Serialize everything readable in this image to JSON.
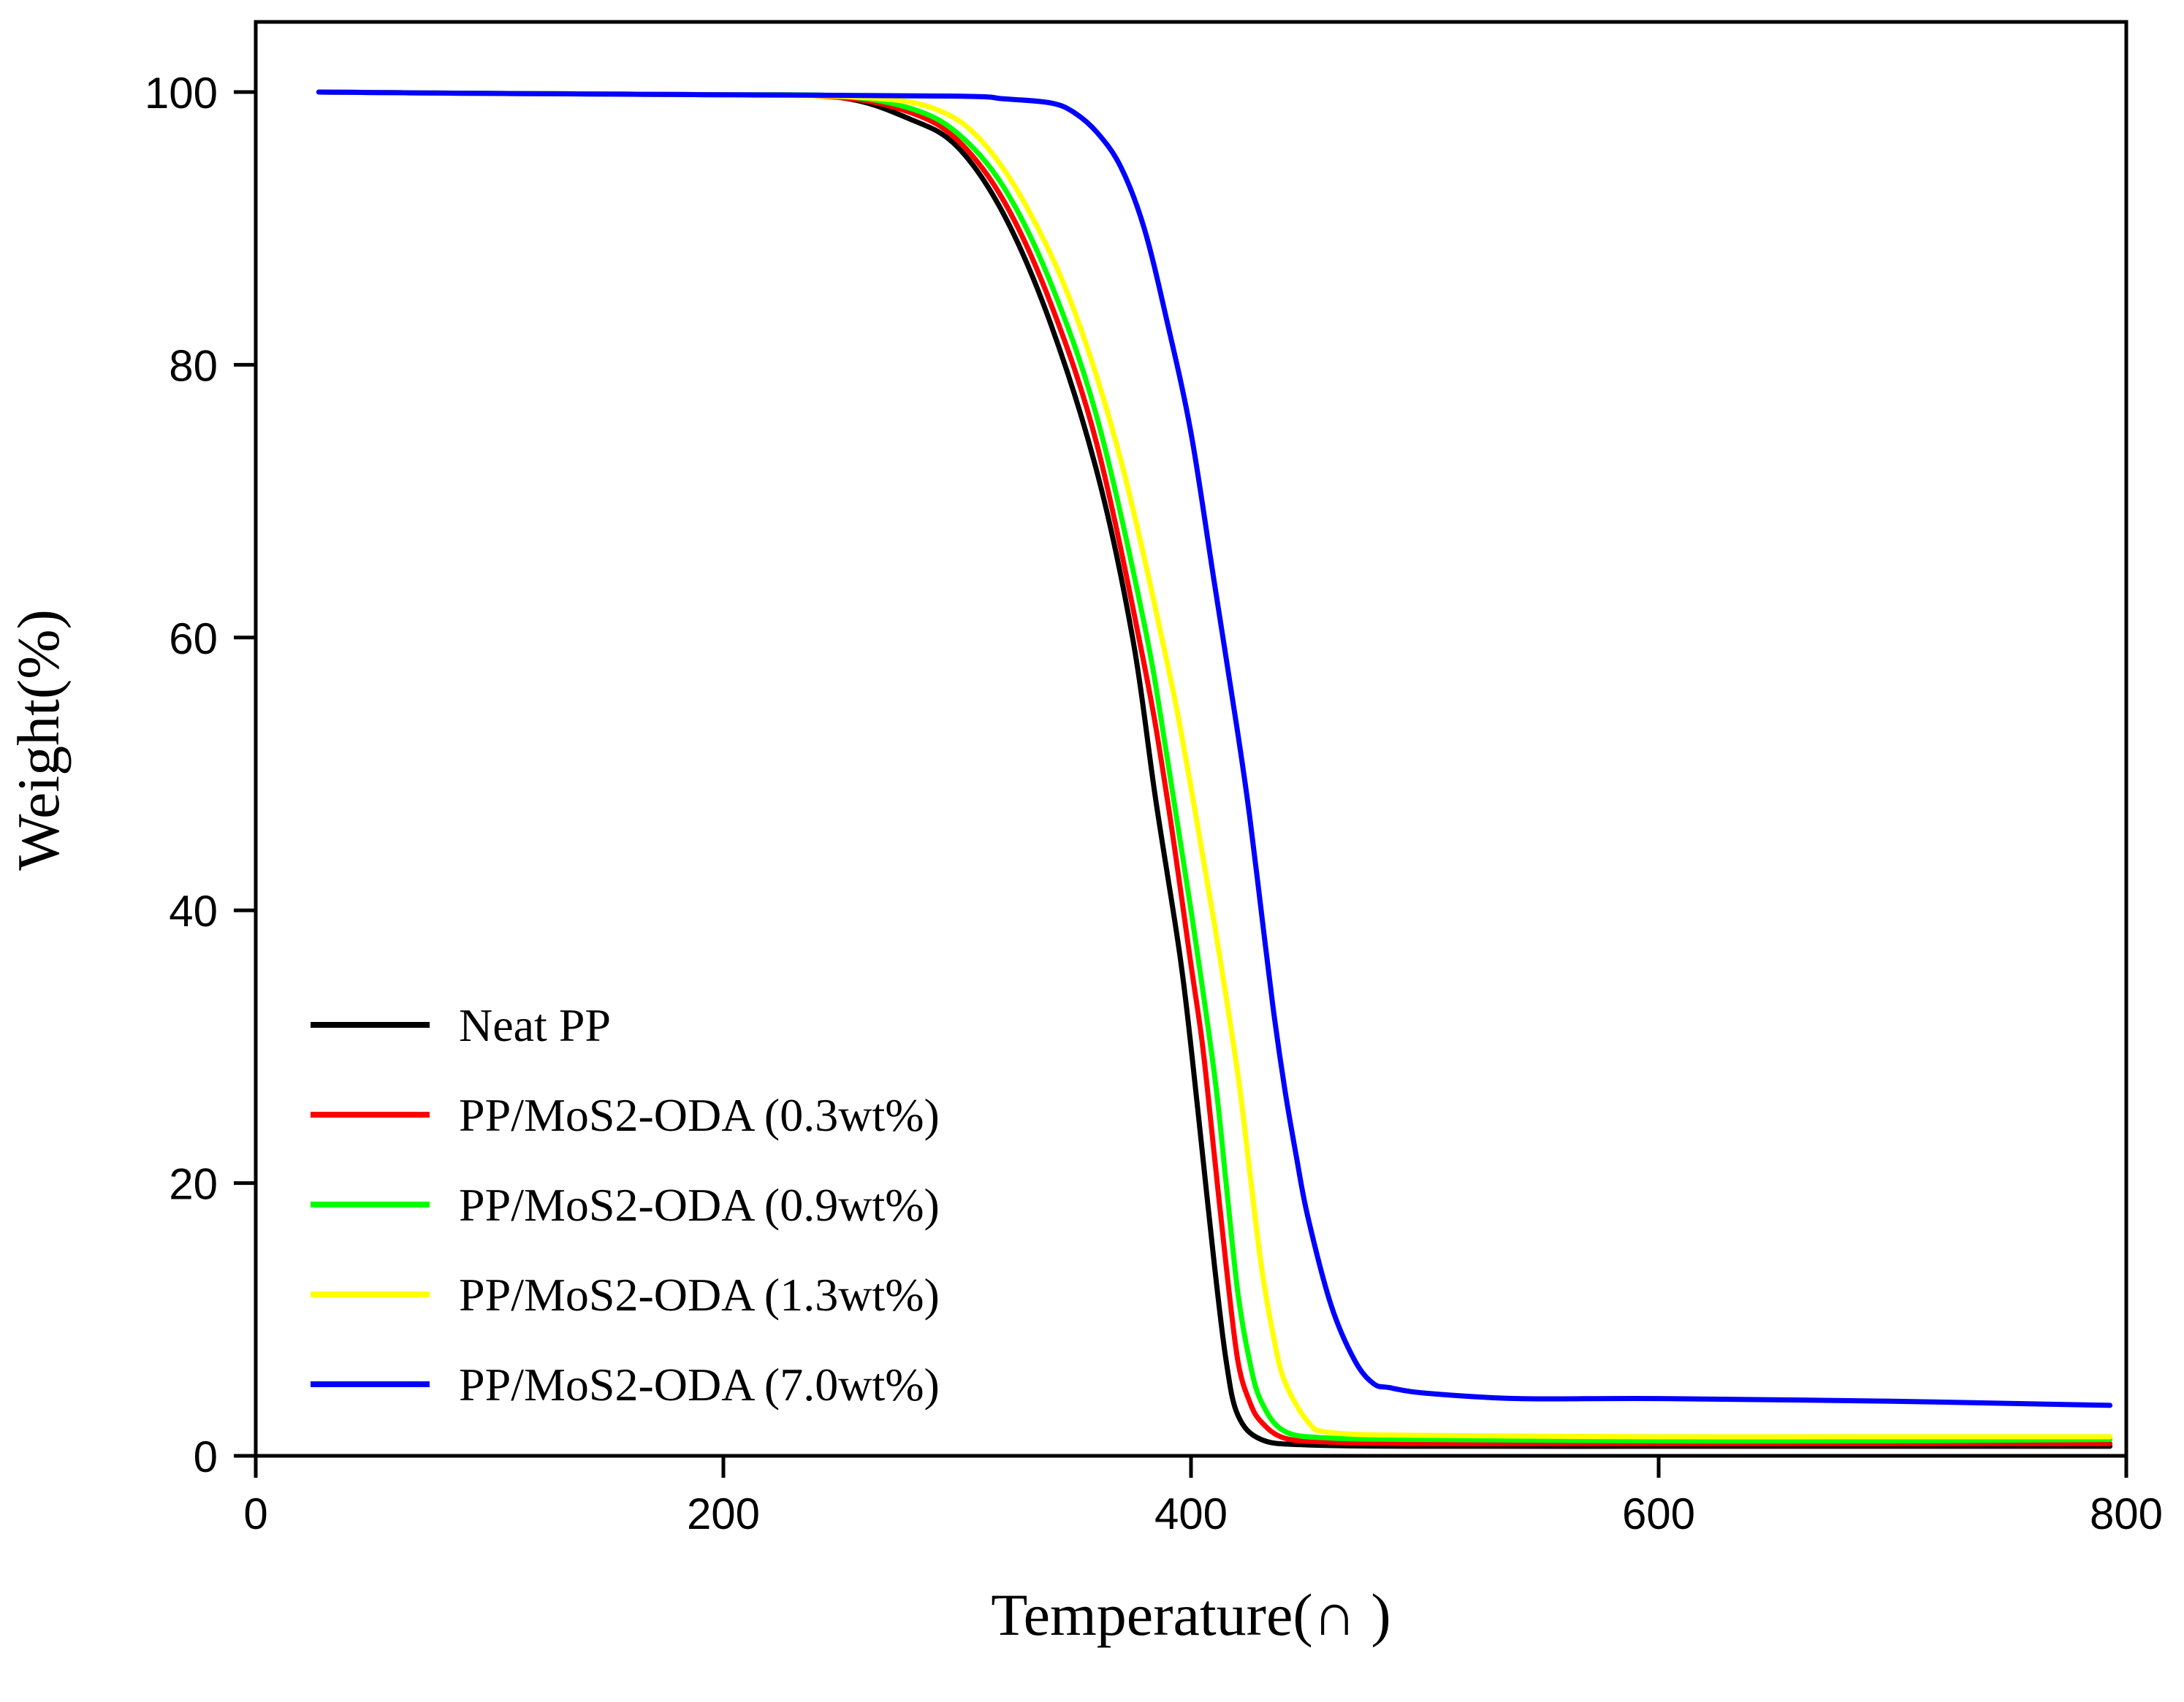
{
  "chart_data": {
    "type": "line",
    "title": "",
    "xlabel": "Temperature(∩ )",
    "ylabel": "Weight(%)",
    "xlim": [
      0,
      800
    ],
    "ylim": [
      0,
      100
    ],
    "xticks": [
      "0",
      "200",
      "400",
      "600",
      "800"
    ],
    "yticks": [
      "0",
      "20",
      "40",
      "60",
      "80",
      "100"
    ],
    "grid": false,
    "legend_position": "bottom-left",
    "series": [
      {
        "name": "Neat PP",
        "color": "#000000",
        "x": [
          27,
          100,
          200,
          250,
          280,
          300,
          320,
          340,
          360,
          375,
          385,
          395,
          400,
          405,
          410,
          415,
          420,
          430,
          450,
          500,
          600,
          700,
          793
        ],
        "y": [
          100,
          99.9,
          99.8,
          99.6,
          98,
          96,
          91,
          83,
          72,
          60,
          48,
          37,
          30,
          22,
          14,
          7,
          3,
          1.2,
          0.8,
          0.7,
          0.7,
          0.7,
          0.7
        ]
      },
      {
        "name": "PP/MoS2-ODA (0.3wt%)",
        "color": "#ff0000",
        "x": [
          27,
          100,
          200,
          250,
          280,
          300,
          320,
          340,
          360,
          380,
          390,
          400,
          405,
          410,
          415,
          420,
          425,
          430,
          440,
          460,
          500,
          600,
          700,
          793
        ],
        "y": [
          100,
          99.9,
          99.8,
          99.6,
          98.5,
          96.5,
          92,
          84.5,
          74,
          58,
          48,
          36,
          30,
          22,
          14,
          7,
          4,
          2.5,
          1.3,
          1,
          0.9,
          0.9,
          0.9,
          0.9
        ]
      },
      {
        "name": "PP/MoS2-ODA (0.9wt%)",
        "color": "#00ff00",
        "x": [
          27,
          100,
          200,
          250,
          280,
          300,
          320,
          340,
          360,
          380,
          390,
          400,
          410,
          415,
          420,
          425,
          430,
          440,
          460,
          500,
          600,
          700,
          793
        ],
        "y": [
          100,
          99.9,
          99.8,
          99.7,
          98.8,
          97,
          93,
          86,
          76,
          61,
          51,
          40,
          28,
          20,
          12,
          7,
          4,
          1.8,
          1.3,
          1.2,
          1.1,
          1.1,
          1.2
        ]
      },
      {
        "name": "PP/MoS2-ODA (1.3wt%)",
        "color": "#ffff00",
        "x": [
          27,
          100,
          200,
          260,
          290,
          310,
          330,
          350,
          370,
          390,
          400,
          410,
          420,
          425,
          430,
          435,
          440,
          450,
          460,
          500,
          600,
          700,
          793
        ],
        "y": [
          100,
          99.9,
          99.8,
          99.6,
          98.8,
          96.5,
          91.5,
          84,
          73,
          58,
          49,
          39,
          28,
          21,
          14,
          9,
          5.5,
          2.5,
          1.7,
          1.5,
          1.4,
          1.4,
          1.4
        ]
      },
      {
        "name": "PP/MoS2-ODA (7.0wt%)",
        "color": "#0000ff",
        "x": [
          27,
          100,
          200,
          300,
          320,
          340,
          350,
          360,
          370,
          380,
          390,
          400,
          410,
          420,
          425,
          430,
          435,
          440,
          445,
          450,
          460,
          470,
          478,
          485,
          500,
          540,
          600,
          700,
          793
        ],
        "y": [
          100,
          99.9,
          99.8,
          99.7,
          99.5,
          99.2,
          98.5,
          97,
          94.5,
          90,
          83,
          75,
          64,
          53,
          47,
          40,
          33,
          27,
          22,
          17.5,
          11,
          7,
          5.3,
          5,
          4.6,
          4.2,
          4.2,
          4,
          3.7
        ]
      }
    ]
  }
}
